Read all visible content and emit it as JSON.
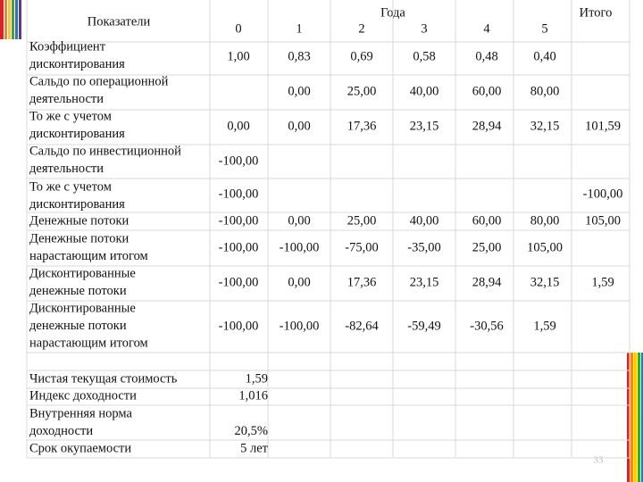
{
  "header": {
    "indicators": "Показатели",
    "years": "Года",
    "columns": [
      "0",
      "1",
      "2",
      "3",
      "4",
      "5"
    ],
    "total": "Итого"
  },
  "table": {
    "rows": [
      {
        "label": [
          "Коэффициент",
          "дисконтирования"
        ],
        "cells": [
          "1,00",
          "0,83",
          "0,69",
          "0,58",
          "0,48",
          "0,40",
          null
        ]
      },
      {
        "label": [
          "Сальдо по операционной",
          "деятельности"
        ],
        "cells": [
          null,
          "0,00",
          "25,00",
          "40,00",
          "60,00",
          "80,00",
          null
        ]
      },
      {
        "label": [
          "То же с учетом",
          "дисконтирования"
        ],
        "cells": [
          "0,00",
          "0,00",
          "17,36",
          "23,15",
          "28,94",
          "32,15",
          "101,59"
        ]
      },
      {
        "label": [
          "Сальдо по инвестиционной",
          "деятельности"
        ],
        "cells": [
          "-100,00",
          null,
          null,
          null,
          null,
          null,
          null
        ]
      },
      {
        "label": [
          "То же с учетом",
          "дисконтирования"
        ],
        "cells": [
          "-100,00",
          null,
          null,
          null,
          null,
          null,
          "-100,00"
        ]
      },
      {
        "label": [
          "Денежные потоки"
        ],
        "cells": [
          "-100,00",
          "0,00",
          "25,00",
          "40,00",
          "60,00",
          "80,00",
          "105,00"
        ]
      },
      {
        "label": [
          "Денежные потоки",
          "нарастающим итогом"
        ],
        "cells": [
          "-100,00",
          "-100,00",
          "-75,00",
          "-35,00",
          "25,00",
          "105,00",
          null
        ]
      },
      {
        "label": [
          "Дисконтированные",
          "денежные потоки"
        ],
        "cells": [
          "-100,00",
          "0,00",
          "17,36",
          "23,15",
          "28,94",
          "32,15",
          "1,59"
        ]
      },
      {
        "label": [
          "Дисконтированные",
          "денежные потоки",
          "нарастающим итогом"
        ],
        "cells": [
          "-100,00",
          "-100,00",
          "-82,64",
          "-59,49",
          "-30,56",
          "1,59",
          null
        ]
      }
    ]
  },
  "summary": [
    {
      "label": [
        "Чистая текущая стоимость"
      ],
      "value": "1,59"
    },
    {
      "label": [
        "Индекс доходности"
      ],
      "value": "1,016"
    },
    {
      "label": [
        "Внутренняя норма",
        "доходности"
      ],
      "value": "20,5%"
    },
    {
      "label": [
        "Срок окупаемости"
      ],
      "value": "5 лет"
    }
  ],
  "page_number": "33"
}
